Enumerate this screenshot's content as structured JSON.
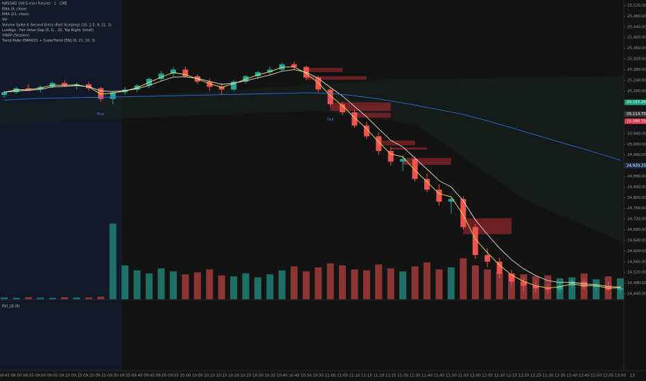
{
  "chart_data": {
    "type": "candlestick",
    "title": "NASDAQ 100 E-mini Futures · 1 · CME",
    "legend_lines": [
      "EMA (9, close)",
      "EMA (21, close)",
      "Vol",
      "Volume Spike & Second Entry (Fast Scalping) (20, 2.5, 9, 21, 1)",
      "LuxAlgo - Fair Value Gap (0, 0, , 20, Top Right, Small)",
      "VWAP (Session)",
      "Trend Rider EMA9/21 + SuperTrend [EN] (9, 21, 10, 3)"
    ],
    "lower_pane_title": "RVI_LB (8)",
    "categories": [
      "08:45",
      "08:50",
      "08:55",
      "09:00",
      "09:05",
      "09:10",
      "09:15",
      "09:20",
      "09:25",
      "09:30",
      "09:35",
      "09:40",
      "09:45",
      "09:50",
      "09:55",
      "10:00",
      "10:05",
      "10:10",
      "10:15",
      "10:20",
      "10:25",
      "10:30",
      "10:35",
      "10:40",
      "10:45",
      "10:50",
      "10:55",
      "11:00",
      "11:05",
      "11:10",
      "11:15",
      "11:20",
      "11:25",
      "11:30",
      "11:35",
      "11:40",
      "11:45",
      "11:50",
      "11:55",
      "12:00",
      "12:05",
      "12:10",
      "12:15",
      "12:20",
      "12:25",
      "12:30",
      "12:35",
      "12:40",
      "12:45",
      "12:50",
      "12:55",
      "13:00"
    ],
    "x_end_label": "13",
    "open": [
      25185,
      25195,
      25210,
      25205,
      25215,
      25230,
      25220,
      25225,
      25210,
      25170,
      25195,
      25205,
      25220,
      25245,
      25265,
      25280,
      25255,
      25235,
      25215,
      25205,
      25235,
      25255,
      25270,
      25280,
      25300,
      25290,
      25250,
      25205,
      25150,
      25120,
      25070,
      25030,
      24975,
      24935,
      24945,
      24870,
      24830,
      24785,
      24795,
      24690,
      24585,
      24560,
      24515,
      24485,
      24470,
      24460,
      24455,
      24470,
      24485,
      24465,
      24470,
      24455
    ],
    "high": [
      25200,
      25215,
      25225,
      25220,
      25235,
      25240,
      25232,
      25235,
      25215,
      25200,
      25215,
      25225,
      25250,
      25275,
      25290,
      25292,
      25262,
      25245,
      25230,
      25240,
      25260,
      25275,
      25290,
      25305,
      25310,
      25295,
      25258,
      25215,
      25160,
      25130,
      25085,
      25045,
      24990,
      24960,
      24955,
      24890,
      24850,
      24800,
      24805,
      24700,
      24610,
      24575,
      24530,
      24500,
      24490,
      24475,
      24480,
      24495,
      24495,
      24480,
      24485,
      24470
    ],
    "low": [
      25175,
      25190,
      25200,
      25195,
      25210,
      25215,
      25205,
      25200,
      25160,
      25150,
      25185,
      25195,
      25210,
      25235,
      25255,
      25250,
      25225,
      25200,
      25185,
      25200,
      25228,
      25245,
      25260,
      25275,
      25280,
      25240,
      25195,
      25140,
      25110,
      25060,
      25020,
      24960,
      24920,
      24900,
      24860,
      24820,
      24770,
      24740,
      24680,
      24570,
      24540,
      24500,
      24470,
      24450,
      24445,
      24440,
      24445,
      24460,
      24455,
      24448,
      24450,
      24442
    ],
    "close": [
      25195,
      25210,
      25205,
      25215,
      25230,
      25220,
      25225,
      25210,
      25170,
      25195,
      25205,
      25220,
      25245,
      25265,
      25280,
      25255,
      25235,
      25215,
      25205,
      25235,
      25255,
      25270,
      25280,
      25300,
      25290,
      25250,
      25205,
      25150,
      25120,
      25070,
      25030,
      24975,
      24935,
      24945,
      24870,
      24830,
      24785,
      24795,
      24690,
      24585,
      24560,
      24515,
      24485,
      24470,
      24460,
      24455,
      24470,
      24485,
      24465,
      24470,
      24455,
      24462
    ],
    "up_color": "#26a69a",
    "down_color": "#ef5350",
    "volume": [
      180,
      150,
      200,
      160,
      140,
      210,
      170,
      190,
      260,
      7600,
      3400,
      2900,
      2600,
      3100,
      2800,
      2500,
      2700,
      3000,
      2400,
      2300,
      2600,
      2200,
      2500,
      2900,
      3300,
      2800,
      3200,
      3600,
      3400,
      3000,
      2900,
      3500,
      3100,
      2800,
      3300,
      3700,
      3000,
      3200,
      4100,
      3400,
      3000,
      2700,
      2600,
      2500,
      2300,
      2400,
      2100,
      2200,
      2600,
      2000,
      2300,
      2100
    ],
    "volume_lim": [
      0,
      8000
    ],
    "volume_up_color": "#1e6f66",
    "volume_down_color": "#8c3535",
    "lines": [
      {
        "name": "EMA (9, close)",
        "color": "#f5e663",
        "values": [
          25195,
          25204,
          25205,
          25211,
          25222,
          25221,
          25223,
          25215,
          25188,
          25192,
          25200,
          25212,
          25232,
          25252,
          25269,
          25261,
          25245,
          25227,
          25214,
          25227,
          25244,
          25260,
          25272,
          25289,
          25290,
          25266,
          25230,
          25182,
          25145,
          25100,
          25058,
          25008,
          24964,
          24953,
          24903,
          24859,
          24815,
          24803,
          24735,
          24645,
          24594,
          24547,
          24510,
          24486,
          24470,
          24461,
          24466,
          24477,
          24470,
          24470,
          24461,
          24462
        ]
      },
      {
        "name": "EMA (21, close)",
        "color": "#e8e0c8",
        "values": [
          25195,
          25200,
          25202,
          25206,
          25215,
          25217,
          25220,
          25216,
          25200,
          25198,
          25201,
          25208,
          25221,
          25237,
          25252,
          25253,
          25247,
          25236,
          25225,
          25229,
          25238,
          25249,
          25260,
          25274,
          25280,
          25270,
          25247,
          25213,
          25181,
          25142,
          25103,
          25058,
          25015,
          24990,
          24948,
          24907,
          24864,
          24840,
          24788,
          24717,
          24662,
          24611,
          24567,
          24533,
          24508,
          24489,
          24482,
          24483,
          24477,
          24474,
          24467,
          24465
        ]
      },
      {
        "name": "VWAP (Session)",
        "color": "#2f6fd6",
        "values": [
          25165,
          25168,
          25170,
          25172,
          25173,
          25174,
          25175,
          25176,
          25176,
          25177,
          25178,
          25179,
          25180,
          25181,
          25182,
          25183,
          25184,
          25185,
          25186,
          25187,
          25188,
          25189,
          25190,
          25191,
          25192,
          25193,
          25192,
          25190,
          25187,
          25182,
          25176,
          25170,
          25163,
          25155,
          25147,
          25138,
          25130,
          25121,
          25112,
          25100,
          25088,
          25075,
          25062,
          25048,
          25035,
          25021,
          25008,
          24995,
          24982,
          24968,
          24955,
          24940
        ]
      }
    ],
    "fvg_zones": [
      {
        "start": "10:50",
        "end": "11:05",
        "top": 25286,
        "bottom": 25271
      },
      {
        "start": "10:50",
        "end": "11:15",
        "top": 25255,
        "bottom": 25242
      },
      {
        "start": "11:00",
        "end": "11:25",
        "top": 25157,
        "bottom": 25125
      },
      {
        "start": "11:10",
        "end": "11:25",
        "top": 25118,
        "bottom": 25100
      },
      {
        "start": "11:20",
        "end": "11:35",
        "top": 25014,
        "bottom": 24996
      },
      {
        "start": "11:25",
        "end": "11:40",
        "top": 24988,
        "bottom": 24980
      },
      {
        "start": "11:30",
        "end": "11:50",
        "top": 24949,
        "bottom": 24923
      },
      {
        "start": "11:55",
        "end": "12:15",
        "top": 24723,
        "bottom": 24663
      }
    ],
    "fvg_color": "#7a2228",
    "annotations": [
      {
        "text": "Buy",
        "x": "09:25",
        "color": "#4a7fe0"
      },
      {
        "text": "Sell",
        "x": "11:00",
        "color": "#4a7fe0"
      }
    ],
    "ylim": [
      24440,
      25520
    ],
    "yticks": [
      {
        "value": 24440,
        "label": "24,440.00"
      },
      {
        "value": 24480,
        "label": "24,480.00"
      },
      {
        "value": 24520,
        "label": "24,520.00"
      },
      {
        "value": 24560,
        "label": "24,560.00"
      },
      {
        "value": 24600,
        "label": "24,600.00"
      },
      {
        "value": 24640,
        "label": "24,640.00"
      },
      {
        "value": 24680,
        "label": "24,680.00"
      },
      {
        "value": 24720,
        "label": "24,720.00"
      },
      {
        "value": 24760,
        "label": "24,760.00"
      },
      {
        "value": 24800,
        "label": "24,800.00"
      },
      {
        "value": 24840,
        "label": "24,840.00"
      },
      {
        "value": 24880,
        "label": "24,880.00"
      },
      {
        "value": 24960,
        "label": "24,960.00"
      },
      {
        "value": 25000,
        "label": "25,000.00"
      },
      {
        "value": 25040,
        "label": "25,040.00"
      },
      {
        "value": 25200,
        "label": "25,200.00"
      },
      {
        "value": 25240,
        "label": "25,240.00"
      },
      {
        "value": 25280,
        "label": "25,280.00"
      },
      {
        "value": 25320,
        "label": "25,320.00"
      },
      {
        "value": 25360,
        "label": "25,360.00"
      },
      {
        "value": 25400,
        "label": "25,400.00"
      },
      {
        "value": 25440,
        "label": "25,440.00"
      },
      {
        "value": 25480,
        "label": "25,480.00"
      },
      {
        "value": 25520,
        "label": "25,520.00"
      }
    ],
    "price_markers": [
      {
        "value": 25157.25,
        "label": "25,157.25",
        "color": "#1f9e7a"
      },
      {
        "value": 25113.75,
        "label": "25,113.75",
        "color": "#3a3a3a"
      },
      {
        "value": 25086.25,
        "label": "25,086.25",
        "color": "#d8344a"
      },
      {
        "value": 24920.25,
        "label": "24,920.25",
        "color": "#1c2f55"
      }
    ]
  }
}
